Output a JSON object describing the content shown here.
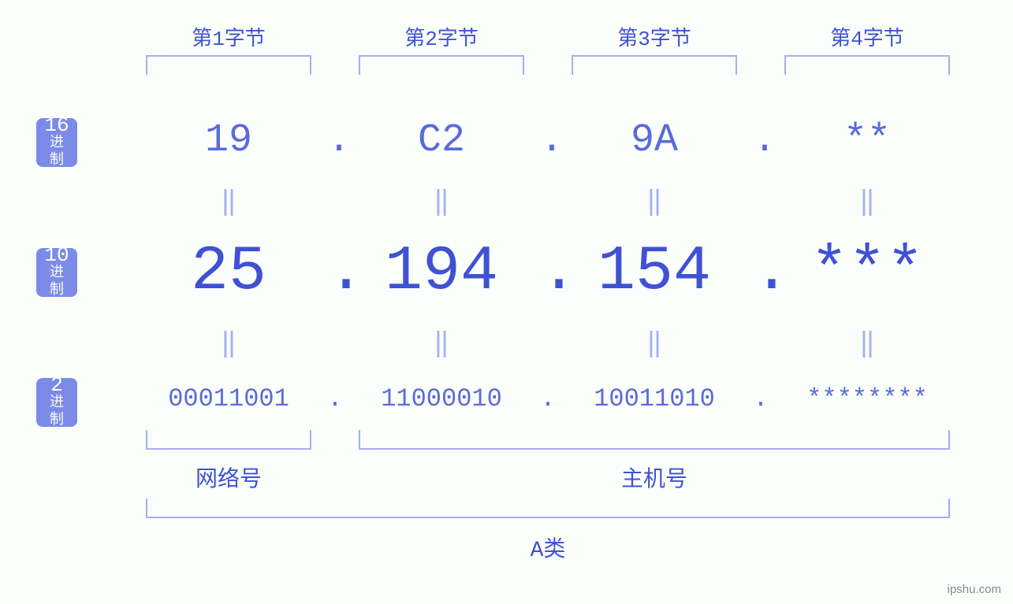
{
  "colors": {
    "background": "#fafffc",
    "primary": "#4051d4",
    "label_bg": "#7c8ae8",
    "bracket": "#a5b0f0",
    "equals": "#a5b0f0",
    "label_text": "#ffffff"
  },
  "byte_headers": [
    "第1字节",
    "第2字节",
    "第3字节",
    "第4字节"
  ],
  "bases": {
    "hex": {
      "num": "16",
      "text": "进制"
    },
    "dec": {
      "num": "10",
      "text": "进制"
    },
    "bin": {
      "num": "2",
      "text": "进制"
    }
  },
  "values": {
    "hex": [
      "19",
      "C2",
      "9A",
      "**"
    ],
    "dec": [
      "25",
      "194",
      "154",
      "***"
    ],
    "bin": [
      "00011001",
      "11000010",
      "10011010",
      "********"
    ]
  },
  "separator": ".",
  "equals": "‖",
  "bottom_labels": {
    "network": "网络号",
    "host": "主机号",
    "class": "A类"
  },
  "watermark": "ipshu.com",
  "fontsizes": {
    "byte_header": 26,
    "base_num": 26,
    "base_text": 18,
    "hex": 50,
    "dec": 80,
    "bin": 32,
    "equals": 34,
    "bottom_label": 28,
    "class_label": 28
  }
}
